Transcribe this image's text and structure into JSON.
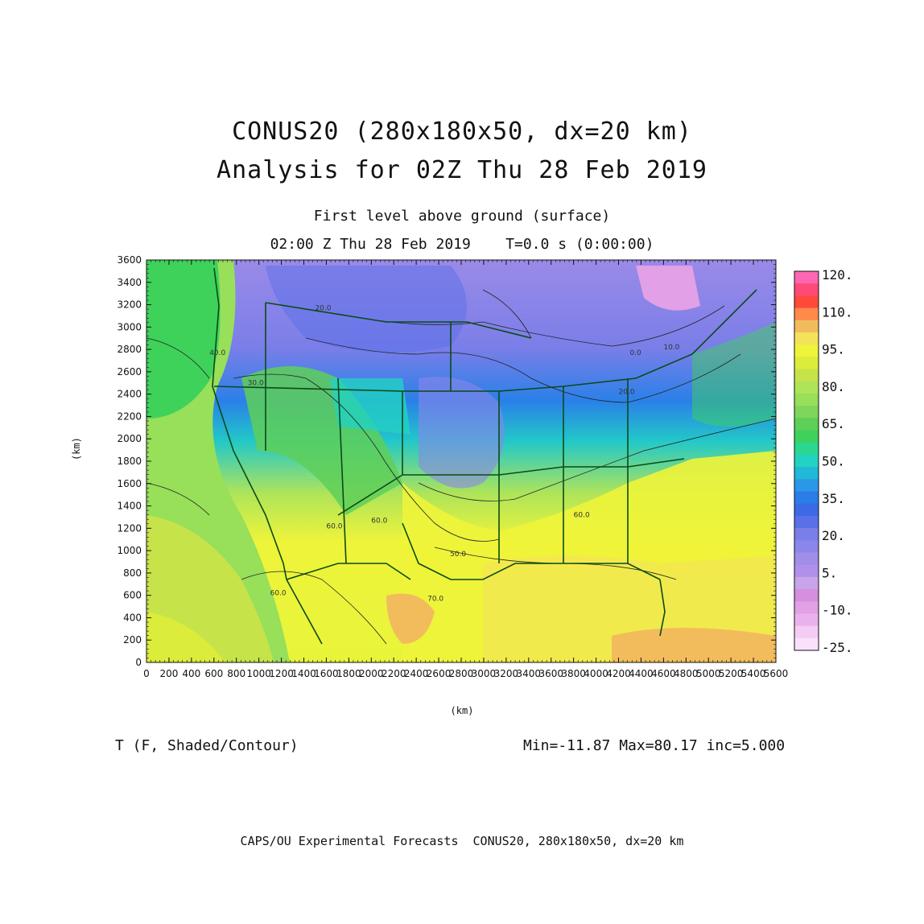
{
  "title": {
    "line1": "CONUS20 (280x180x50, dx=20 km)",
    "line2": "Analysis for 02Z Thu 28 Feb 2019"
  },
  "subtitle": {
    "line1": "First level above ground (surface)",
    "line2": "02:00 Z Thu 28 Feb 2019    T=0.0 s (0:00:00)"
  },
  "axes": {
    "xlabel": "(km)",
    "ylabel": "(km)",
    "xticks": [
      "0",
      "200",
      "400",
      "600",
      "800",
      "1000",
      "1200",
      "1400",
      "1600",
      "1800",
      "2000",
      "2200",
      "2400",
      "2600",
      "2800",
      "3000",
      "3200",
      "3400",
      "3600",
      "3800",
      "4000",
      "4200",
      "4400",
      "4600",
      "4800",
      "5000",
      "5200",
      "5400",
      "5600"
    ],
    "yticks": [
      "0",
      "200",
      "400",
      "600",
      "800",
      "1000",
      "1200",
      "1400",
      "1600",
      "1800",
      "2000",
      "2200",
      "2400",
      "2600",
      "2800",
      "3000",
      "3200",
      "3400",
      "3600"
    ],
    "xlim": [
      0,
      5600
    ],
    "ylim": [
      0,
      3600
    ]
  },
  "colorbar": {
    "labels": [
      "120.",
      "110.",
      "95.",
      "80.",
      "65.",
      "50.",
      "35.",
      "20.",
      "5.",
      "-10.",
      "-25."
    ],
    "colors": [
      "#ff66b2",
      "#ff4a78",
      "#ff4a3a",
      "#ff8a4a",
      "#f2bc5c",
      "#f4e25a",
      "#eef43a",
      "#dcec3a",
      "#c6e34a",
      "#aee45a",
      "#98df5a",
      "#7ed65a",
      "#5ecf58",
      "#3ed25a",
      "#2ad690",
      "#22d2c2",
      "#22b8d8",
      "#2a98e6",
      "#2a7ce8",
      "#3c6ae6",
      "#5a70e8",
      "#7a7ee8",
      "#8a86ea",
      "#a08ee8",
      "#b090ea",
      "#c8a4ea",
      "#d68ede",
      "#e2a0e6",
      "#eab2ec",
      "#f4ccf4",
      "#fbe0fb"
    ]
  },
  "chart_data": {
    "type": "heatmap",
    "title": "CONUS20 (280x180x50, dx=20 km) Analysis for 02Z Thu 28 Feb 2019",
    "variable": "T (F, Shaded/Contour)",
    "xlabel": "(km)",
    "ylabel": "(km)",
    "xlim": [
      0,
      5600
    ],
    "ylim": [
      0,
      3600
    ],
    "min": -11.87,
    "max": 80.17,
    "inc": 5.0,
    "contour_labels": [
      "40.0",
      "30.0",
      "20.0",
      "10.0",
      "0.0",
      "60.0",
      "70.0",
      "50.0"
    ]
  },
  "info": {
    "variable": "T (F, Shaded/Contour)",
    "stats": "Min=-11.87 Max=80.17 inc=5.000"
  },
  "footer": "CAPS/OU Experimental Forecasts  CONUS20, 280x180x50, dx=20 km"
}
